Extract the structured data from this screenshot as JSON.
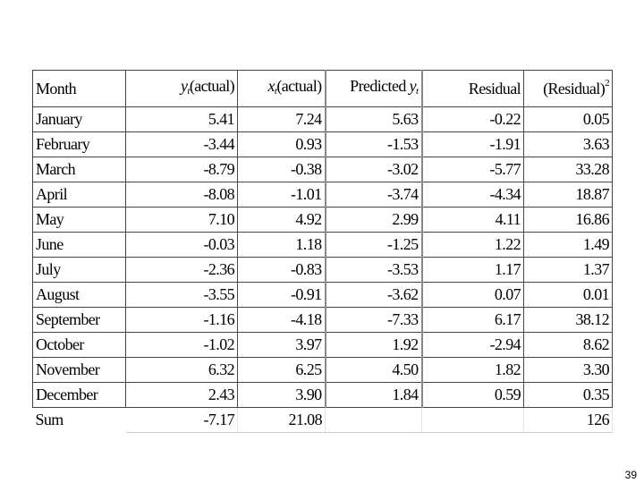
{
  "table": {
    "headers": {
      "month": "Month",
      "y_actual": {
        "var": "y",
        "sub": "t",
        "label": "(actual)"
      },
      "x_actual": {
        "var": "x",
        "sub": "t",
        "label": "(actual)"
      },
      "predicted": {
        "label": "Predicted ",
        "var": "y",
        "sub": "t"
      },
      "residual": "Residual",
      "residual_sq": {
        "label": "(Residual)",
        "sup": "2"
      }
    },
    "rows": [
      [
        "January",
        "5.41",
        "7.24",
        "5.63",
        "-0.22",
        "0.05"
      ],
      [
        "February",
        "-3.44",
        "0.93",
        "-1.53",
        "-1.91",
        "3.63"
      ],
      [
        "March",
        "-8.79",
        "-0.38",
        "-3.02",
        "-5.77",
        "33.28"
      ],
      [
        "April",
        "-8.08",
        "-1.01",
        "-3.74",
        "-4.34",
        "18.87"
      ],
      [
        "May",
        "7.10",
        "4.92",
        "2.99",
        "4.11",
        "16.86"
      ],
      [
        "June",
        "-0.03",
        "1.18",
        "-1.25",
        "1.22",
        "1.49"
      ],
      [
        "July",
        "-2.36",
        "-0.83",
        "-3.53",
        "1.17",
        "1.37"
      ],
      [
        "August",
        "-3.55",
        "-0.91",
        "-3.62",
        "0.07",
        "0.01"
      ],
      [
        "September",
        "-1.16",
        "-4.18",
        "-7.33",
        "6.17",
        "38.12"
      ],
      [
        "October",
        "-1.02",
        "3.97",
        "1.92",
        "-2.94",
        "8.62"
      ],
      [
        "November",
        "6.32",
        "6.25",
        "4.50",
        "1.82",
        "3.30"
      ],
      [
        "December",
        "2.43",
        "3.90",
        "1.84",
        "0.59",
        "0.35"
      ]
    ],
    "sum": [
      "Sum",
      "-7.17",
      "21.08",
      "",
      "",
      "126"
    ]
  },
  "page_number": "39"
}
